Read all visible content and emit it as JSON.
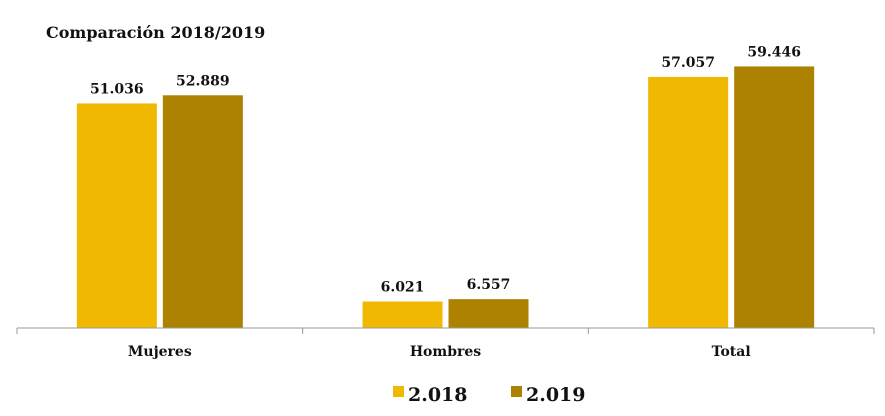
{
  "chart_data": {
    "type": "bar",
    "title": "Comparación 2018/2019",
    "categories": [
      "Mujeres",
      "Hombres",
      "Total"
    ],
    "series": [
      {
        "name": "2.018",
        "values": [
          51.036,
          6.021,
          57.057
        ],
        "labels": [
          "51.036",
          "6.021",
          "57.057"
        ],
        "color": "#F0B800"
      },
      {
        "name": "2.019",
        "values": [
          52.889,
          6.557,
          59.446
        ],
        "labels": [
          "52.889",
          "6.557",
          "59.446"
        ],
        "color": "#AD8200"
      }
    ],
    "ylim": [
      0,
      70
    ],
    "grid": false,
    "legend_position": "bottom-center"
  }
}
